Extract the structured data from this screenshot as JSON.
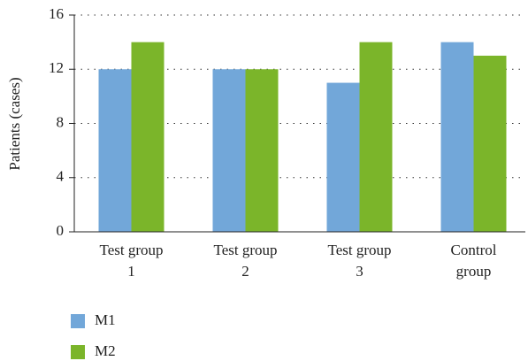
{
  "chart_data": {
    "type": "bar",
    "y_label": "Patients (cases)",
    "categories": [
      "Test group 1",
      "Test group 2",
      "Test group 3",
      "Control group"
    ],
    "series": [
      {
        "name": "M1",
        "color": "#72a7d9",
        "values": [
          12,
          12,
          11,
          14
        ]
      },
      {
        "name": "M2",
        "color": "#7bb52a",
        "values": [
          14,
          12,
          14,
          13
        ]
      }
    ],
    "ylim": [
      0,
      16
    ],
    "yticks": [
      0,
      4,
      8,
      12,
      16
    ],
    "grid": true
  }
}
